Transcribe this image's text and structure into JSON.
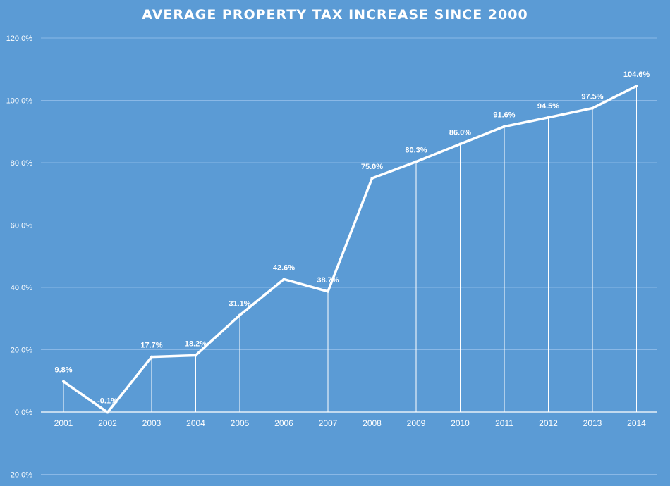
{
  "chart_data": {
    "type": "line",
    "title": "AVERAGE PROPERTY TAX INCREASE SINCE 2000",
    "xlabel": "",
    "ylabel": "",
    "categories": [
      "2001",
      "2002",
      "2003",
      "2004",
      "2005",
      "2006",
      "2007",
      "2008",
      "2009",
      "2010",
      "2011",
      "2012",
      "2013",
      "2014"
    ],
    "series": [
      {
        "values": [
          9.8,
          -0.1,
          17.7,
          18.2,
          31.1,
          42.6,
          38.7,
          75.0,
          80.3,
          86.0,
          91.6,
          94.5,
          97.5,
          104.6
        ],
        "data_labels": [
          "9.8%",
          "-0.1%",
          "17.7%",
          "18.2%",
          "31.1%",
          "42.6%",
          "38.7%",
          "75.0%",
          "80.3%",
          "86.0%",
          "91.6%",
          "94.5%",
          "97.5%",
          "104.6%"
        ]
      }
    ],
    "ylim": [
      -20,
      120
    ],
    "yticks": [
      -20,
      0,
      20,
      40,
      60,
      80,
      100,
      120
    ],
    "ytick_labels": [
      "-20.0%",
      "0.0%",
      "20.0%",
      "40.0%",
      "60.0%",
      "80.0%",
      "100.0%",
      "120.0%"
    ],
    "grid": true,
    "drop_lines": true,
    "legend": "none",
    "colors": {
      "background": "#5b9bd5",
      "line": "#ffffff",
      "gridline": "#8ab8e6",
      "text": "#ffffff"
    }
  }
}
